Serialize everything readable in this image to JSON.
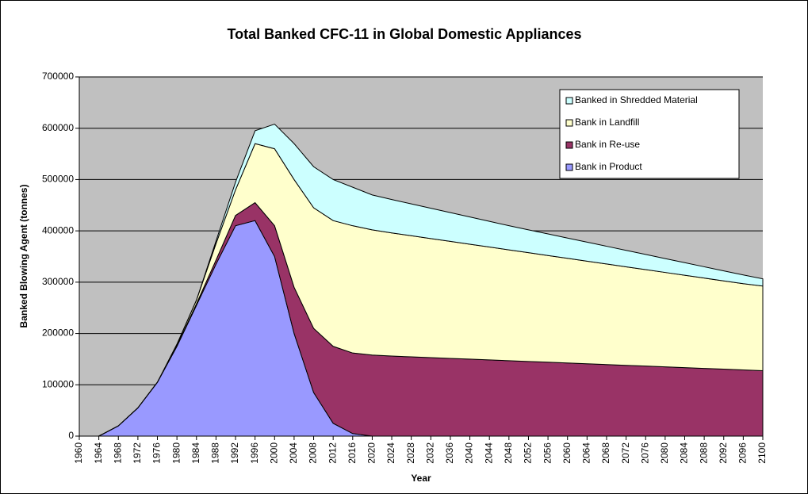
{
  "chart_data": {
    "type": "stacked-area",
    "title": "Total Banked CFC-11 in Global Domestic Appliances",
    "x_label": "Year",
    "y_label": "Banked Blowing Agent (tonnes)",
    "x": [
      1960,
      1964,
      1968,
      1972,
      1976,
      1980,
      1984,
      1988,
      1992,
      1996,
      2000,
      2004,
      2008,
      2012,
      2016,
      2020,
      2024,
      2028,
      2032,
      2036,
      2040,
      2044,
      2048,
      2052,
      2056,
      2060,
      2064,
      2068,
      2072,
      2076,
      2080,
      2084,
      2088,
      2092,
      2096,
      2100
    ],
    "series": [
      {
        "name": "Bank in Product",
        "color": "#9999ff",
        "values": [
          0,
          0,
          20000,
          55000,
          105000,
          175000,
          255000,
          335000,
          410000,
          420000,
          350000,
          200000,
          85000,
          25000,
          5000,
          0,
          0,
          0,
          0,
          0,
          0,
          0,
          0,
          0,
          0,
          0,
          0,
          0,
          0,
          0,
          0,
          0,
          0,
          0,
          0,
          0
        ]
      },
      {
        "name": "Bank in Re-use",
        "color": "#993366",
        "values": [
          0,
          0,
          0,
          0,
          0,
          1000,
          3000,
          8000,
          20000,
          35000,
          60000,
          90000,
          125000,
          150000,
          157000,
          158000,
          156000,
          154500,
          153000,
          151500,
          150000,
          148500,
          147000,
          145500,
          144000,
          142500,
          141000,
          139500,
          138000,
          136500,
          135000,
          133500,
          132000,
          130500,
          129000,
          127500
        ]
      },
      {
        "name": "Bank in Landfill",
        "color": "#ffffcc",
        "values": [
          0,
          0,
          0,
          0,
          0,
          3000,
          7000,
          32000,
          50000,
          115000,
          150000,
          210000,
          235000,
          245000,
          248000,
          244000,
          240000,
          236000,
          232000,
          228000,
          224000,
          220000,
          216000,
          212000,
          208000,
          204000,
          200000,
          196000,
          192000,
          188000,
          184000,
          180000,
          176000,
          172000,
          168000,
          165000
        ]
      },
      {
        "name": "Banked in Shredded Material",
        "color": "#ccffff",
        "values": [
          0,
          0,
          0,
          0,
          0,
          0,
          0,
          5000,
          15000,
          25000,
          48000,
          70000,
          80000,
          80000,
          75000,
          68000,
          65000,
          62000,
          59000,
          56000,
          53000,
          50000,
          47000,
          44500,
          42000,
          39500,
          37000,
          34500,
          32000,
          29500,
          27000,
          24500,
          22000,
          19500,
          17000,
          14000
        ]
      }
    ],
    "xlim": [
      1960,
      2100
    ],
    "xticks": [
      1960,
      1964,
      1968,
      1972,
      1976,
      1980,
      1984,
      1988,
      1992,
      1996,
      2000,
      2004,
      2008,
      2012,
      2016,
      2020,
      2024,
      2028,
      2032,
      2036,
      2040,
      2044,
      2048,
      2052,
      2056,
      2060,
      2064,
      2068,
      2072,
      2076,
      2080,
      2084,
      2088,
      2092,
      2096,
      2100
    ],
    "ylim": [
      0,
      700000
    ],
    "yticks": [
      0,
      100000,
      200000,
      300000,
      400000,
      500000,
      600000,
      700000
    ],
    "grid": true,
    "legend": "upper right"
  }
}
